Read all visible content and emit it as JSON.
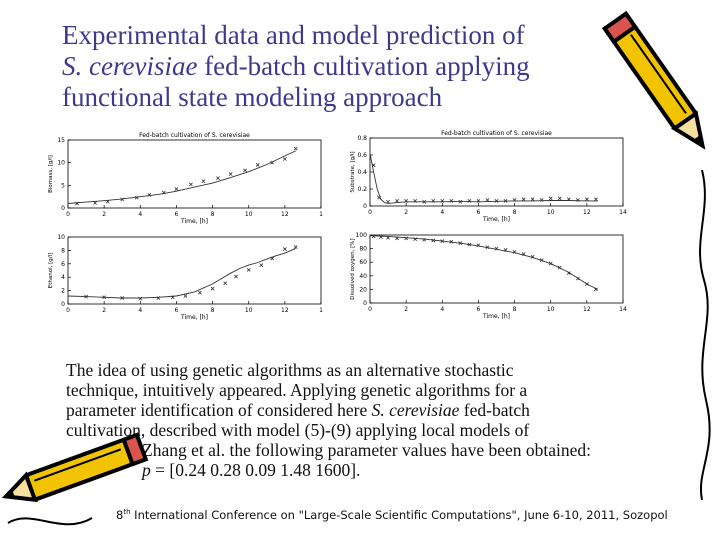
{
  "slide": {
    "title_line1": "Experimental data and model prediction of",
    "title_line2_italic": "S. cerevisiae",
    "title_line2_rest": " fed-batch cultivation applying",
    "title_line3": "functional state modeling approach",
    "paragraph": {
      "l1": "The idea of using genetic algorithms as an alternative stochastic",
      "l2": "technique, intuitively appeared. Applying genetic algorithms for a",
      "l3a": "parameter identification of considered here ",
      "l3b": "S. cerevisiae",
      "l3c": " fed-batch",
      "l4": "cultivation, described with model (5)-(9) applying local models of",
      "l5": "Zhang et al. the following parameter values have been obtained:",
      "l6a": "p",
      "l6b": " = [0.24 0.28 0.09 1.48 1600]."
    },
    "footer_num": "8",
    "footer_sup": "th",
    "footer_rest": " International Conference on \"Large-Scale Scientific Computations\", June 6-10, 2011, Sozopol"
  },
  "colors": {
    "title": "#3d3a8c",
    "pencil_body": "#f2c300",
    "pencil_outline": "#000000",
    "eraser": "#d9534f"
  },
  "icons": [
    "pencil-icon-top-right",
    "pencil-icon-bottom-left"
  ],
  "chart_data": [
    {
      "type": "scatter",
      "title": "Fed-batch cultivation of S. cerevisiae",
      "xlabel": "Time, [h]",
      "ylabel": "Biomass, [g/l]",
      "xlim": [
        0,
        14
      ],
      "ylim": [
        0,
        15
      ],
      "xticks": [
        "0",
        "2",
        "4",
        "6",
        "8",
        "10",
        "12",
        "1"
      ],
      "yticks": [
        "0",
        "5",
        "10",
        "15"
      ],
      "series": [
        {
          "kind": "model",
          "x": [
            0,
            1,
            2,
            3,
            4,
            5,
            6,
            7,
            8,
            9,
            10,
            11,
            12,
            12.6
          ],
          "y": [
            1.0,
            1.3,
            1.6,
            2.0,
            2.5,
            3.0,
            3.7,
            4.6,
            5.5,
            6.7,
            8.0,
            9.6,
            11.5,
            12.6
          ]
        },
        {
          "kind": "data",
          "x": [
            0.5,
            1.5,
            2.2,
            3,
            3.8,
            4.5,
            5.3,
            6,
            6.8,
            7.5,
            8.3,
            9,
            9.8,
            10.5,
            11.3,
            12,
            12.6
          ],
          "y": [
            1.0,
            1.1,
            1.4,
            1.9,
            2.3,
            2.9,
            3.4,
            4.2,
            5.2,
            5.9,
            6.6,
            7.5,
            8.3,
            9.5,
            10.0,
            10.8,
            13.1
          ]
        }
      ]
    },
    {
      "type": "scatter",
      "title": "Fed-batch cultivation of S. cerevisiae",
      "xlabel": "Time, [h]",
      "ylabel": "Substrate, [g/l]",
      "xlim": [
        0,
        14
      ],
      "ylim": [
        0,
        0.8
      ],
      "xticks": [
        "0",
        "2",
        "4",
        "6",
        "8",
        "10",
        "12",
        "14"
      ],
      "yticks": [
        "0",
        "0.2",
        "0.4",
        "0.6",
        "0.8"
      ],
      "series": [
        {
          "kind": "model",
          "x": [
            0,
            0.2,
            0.4,
            0.6,
            0.8,
            1,
            1.5,
            2,
            3,
            4,
            5,
            6,
            7,
            8,
            9,
            10,
            11,
            12,
            12.6
          ],
          "y": [
            0.62,
            0.4,
            0.2,
            0.08,
            0.04,
            0.03,
            0.04,
            0.05,
            0.05,
            0.05,
            0.055,
            0.05,
            0.055,
            0.06,
            0.06,
            0.065,
            0.065,
            0.06,
            0.06
          ]
        },
        {
          "kind": "data",
          "x": [
            0.2,
            0.5,
            1,
            1.5,
            2,
            2.5,
            3,
            3.5,
            4,
            4.5,
            5,
            5.5,
            6,
            6.5,
            7,
            7.5,
            8,
            8.5,
            9,
            9.5,
            10,
            10.5,
            11,
            11.5,
            12,
            12.5
          ],
          "y": [
            0.48,
            0.1,
            0.05,
            0.06,
            0.06,
            0.06,
            0.05,
            0.06,
            0.06,
            0.06,
            0.05,
            0.06,
            0.06,
            0.07,
            0.06,
            0.06,
            0.07,
            0.08,
            0.08,
            0.07,
            0.09,
            0.09,
            0.08,
            0.07,
            0.08,
            0.08
          ]
        }
      ]
    },
    {
      "type": "scatter",
      "title": "",
      "xlabel": "Time, [h]",
      "ylabel": "Ethanol, [g/l]",
      "xlim": [
        0,
        14
      ],
      "ylim": [
        0,
        10
      ],
      "xticks": [
        "0",
        "2",
        "4",
        "6",
        "8",
        "10",
        "12",
        "1"
      ],
      "yticks": [
        "0",
        "2",
        "4",
        "6",
        "8",
        "10"
      ],
      "series": [
        {
          "kind": "model",
          "x": [
            0,
            1,
            2,
            3,
            4,
            5,
            6,
            7,
            8,
            8.5,
            9,
            9.5,
            10,
            10.5,
            11,
            11.5,
            12,
            12.6
          ],
          "y": [
            1.2,
            1.1,
            1.0,
            0.9,
            0.9,
            1.0,
            1.2,
            1.8,
            3.0,
            3.8,
            4.6,
            5.3,
            5.8,
            6.2,
            6.7,
            7.2,
            7.6,
            8.3
          ]
        },
        {
          "kind": "data",
          "x": [
            1,
            2,
            3,
            4,
            5,
            5.8,
            6.5,
            7.3,
            8,
            8.7,
            9.3,
            10,
            10.7,
            11.3,
            12,
            12.6
          ],
          "y": [
            1.1,
            1.0,
            0.9,
            0.8,
            0.9,
            1.0,
            1.2,
            1.7,
            2.3,
            3.1,
            4.1,
            5.1,
            5.8,
            6.8,
            8.2,
            8.5
          ]
        }
      ]
    },
    {
      "type": "scatter",
      "title": "",
      "xlabel": "Time, [h]",
      "ylabel": "Dissolved oxygen, [%]",
      "xlim": [
        0,
        14
      ],
      "ylim": [
        0,
        100
      ],
      "xticks": [
        "0",
        "2",
        "4",
        "6",
        "8",
        "10",
        "12",
        "14"
      ],
      "yticks": [
        "0",
        "20",
        "40",
        "60",
        "80",
        "100"
      ],
      "series": [
        {
          "kind": "model",
          "x": [
            0,
            1,
            2,
            3,
            4,
            5,
            6,
            7,
            8,
            9,
            10,
            11,
            12,
            12.6
          ],
          "y": [
            99,
            98,
            96,
            94,
            91,
            88,
            84,
            79,
            74,
            67,
            58,
            45,
            28,
            20
          ]
        },
        {
          "kind": "data",
          "x": [
            0.2,
            0.6,
            1,
            1.5,
            2,
            2.5,
            3,
            3.5,
            4,
            4.5,
            5,
            5.5,
            6,
            6.5,
            7,
            7.5,
            8,
            8.5,
            9,
            9.5,
            10,
            10.5,
            11,
            11.5,
            12,
            12.5
          ],
          "y": [
            98,
            97,
            96,
            95,
            95,
            94,
            93,
            92,
            91,
            90,
            88,
            86,
            85,
            82,
            80,
            78,
            75,
            72,
            68,
            63,
            58,
            52,
            44,
            36,
            28,
            20
          ]
        }
      ]
    }
  ]
}
